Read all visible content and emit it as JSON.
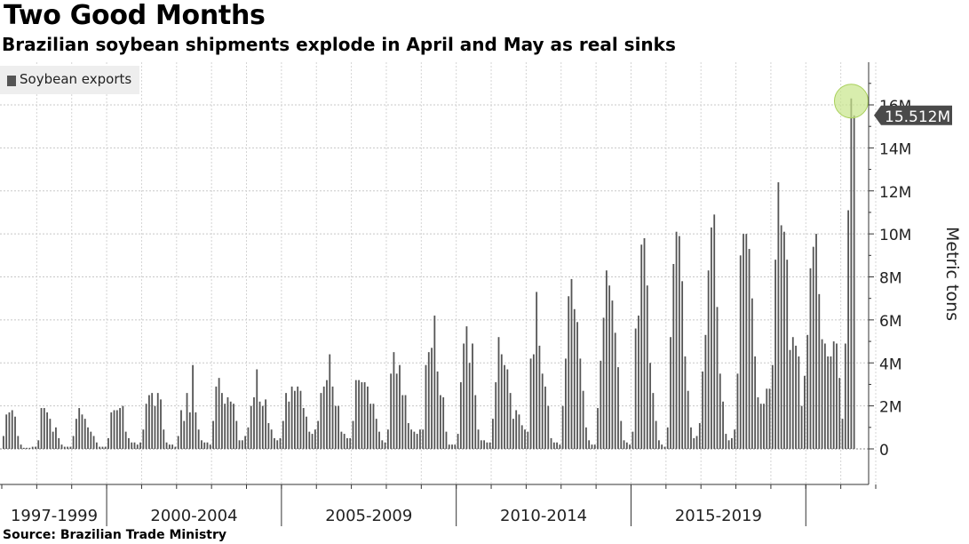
{
  "title": "Two Good Months",
  "subtitle": "Brazilian soybean shipments explode in April and May as real sinks",
  "source": "Source: Brazilian Trade Ministry",
  "chart_data": {
    "type": "bar",
    "series": [
      {
        "name": "Soybean exports",
        "color": "#555555",
        "x_start": "1997-01",
        "frequency": "monthly",
        "values": [
          0.6,
          1.6,
          1.7,
          1.8,
          1.5,
          0.6,
          0.2,
          0.05,
          0.05,
          0.05,
          0.1,
          0.1,
          0.4,
          1.9,
          1.9,
          1.7,
          1.4,
          0.8,
          1.0,
          0.5,
          0.2,
          0.1,
          0.1,
          0.1,
          0.6,
          1.4,
          1.9,
          1.6,
          1.4,
          1.0,
          0.8,
          0.6,
          0.3,
          0.1,
          0.1,
          0.1,
          0.5,
          1.7,
          1.8,
          1.8,
          1.9,
          2.0,
          0.8,
          0.5,
          0.3,
          0.3,
          0.2,
          0.3,
          0.9,
          2.1,
          2.5,
          2.6,
          2.0,
          2.6,
          2.3,
          0.9,
          0.3,
          0.2,
          0.2,
          0.1,
          0.6,
          1.8,
          1.3,
          2.6,
          1.7,
          3.9,
          1.7,
          0.9,
          0.4,
          0.3,
          0.3,
          0.2,
          1.3,
          2.9,
          3.3,
          2.6,
          2.1,
          2.4,
          2.2,
          2.1,
          1.3,
          0.4,
          0.4,
          0.6,
          1.0,
          2.0,
          2.4,
          3.7,
          2.2,
          2.0,
          2.3,
          1.2,
          0.9,
          0.5,
          0.4,
          0.5,
          1.3,
          2.6,
          2.2,
          2.9,
          2.7,
          2.9,
          2.7,
          1.9,
          1.5,
          0.8,
          0.7,
          0.9,
          1.3,
          2.6,
          2.9,
          3.2,
          4.4,
          2.9,
          2.0,
          2.0,
          0.8,
          0.7,
          0.5,
          0.5,
          1.3,
          3.2,
          3.2,
          3.1,
          3.1,
          2.9,
          2.1,
          2.1,
          1.4,
          0.8,
          0.4,
          0.3,
          0.9,
          3.5,
          4.5,
          3.5,
          3.9,
          2.5,
          2.5,
          1.2,
          0.9,
          0.8,
          0.7,
          0.9,
          0.9,
          3.9,
          4.5,
          4.7,
          6.2,
          3.6,
          2.5,
          2.4,
          0.8,
          0.2,
          0.2,
          0.2,
          0.7,
          3.1,
          4.9,
          5.7,
          4.0,
          4.9,
          2.5,
          0.9,
          0.4,
          0.4,
          0.3,
          0.3,
          1.4,
          3.1,
          5.2,
          4.4,
          3.9,
          3.7,
          2.6,
          1.4,
          1.8,
          1.6,
          1.1,
          0.9,
          0.8,
          4.2,
          4.4,
          7.3,
          4.8,
          3.5,
          2.9,
          2.0,
          0.5,
          0.3,
          0.3,
          0.2,
          2.0,
          4.2,
          7.1,
          7.9,
          6.5,
          5.9,
          4.2,
          2.7,
          1.0,
          0.4,
          0.2,
          0.2,
          1.9,
          4.1,
          6.1,
          8.3,
          7.6,
          6.9,
          5.4,
          3.8,
          1.3,
          0.4,
          0.3,
          0.2,
          0.8,
          5.6,
          6.2,
          9.5,
          9.8,
          7.6,
          4.0,
          2.6,
          1.3,
          0.4,
          0.2,
          0.1,
          1.0,
          5.2,
          8.6,
          10.1,
          9.9,
          7.8,
          4.3,
          2.7,
          1.0,
          0.5,
          0.6,
          1.2,
          3.6,
          5.3,
          8.3,
          10.3,
          10.9,
          6.6,
          3.5,
          2.2,
          0.7,
          0.4,
          0.5,
          0.9,
          3.5,
          9.0,
          10.0,
          10.0,
          9.3,
          7.0,
          4.3,
          2.4,
          2.1,
          2.1,
          2.8,
          2.8,
          3.9,
          8.8,
          12.4,
          10.4,
          10.1,
          8.8,
          4.6,
          5.2,
          4.8,
          4.3,
          2.0,
          3.4,
          5.3,
          8.4,
          9.4,
          10.0,
          7.2,
          5.1,
          4.9,
          4.3,
          4.3,
          5.0,
          4.9,
          3.3,
          1.4,
          4.9,
          11.1,
          16.3,
          15.512
        ]
      }
    ],
    "last_value_label": "15.512M",
    "ylabel": "Metric tons",
    "ylim": [
      -1.6,
      18
    ],
    "yticks": [
      0,
      2,
      4,
      6,
      8,
      10,
      12,
      14,
      16
    ],
    "ytick_labels": [
      "0",
      "2M",
      "4M",
      "6M",
      "8M",
      "10M",
      "12M",
      "14M",
      "16M"
    ],
    "x_groups": [
      {
        "label": "1997-1999",
        "start_index": 0,
        "months": 36
      },
      {
        "label": "2000-2004",
        "start_index": 36,
        "months": 60
      },
      {
        "label": "2005-2009",
        "start_index": 96,
        "months": 60
      },
      {
        "label": "2010-2014",
        "start_index": 156,
        "months": 60
      },
      {
        "label": "2015-2019",
        "start_index": 216,
        "months": 60
      }
    ],
    "grid": true,
    "legend_position": "top-left",
    "highlight_index": 291,
    "highlight_color": "#c8e68a"
  }
}
